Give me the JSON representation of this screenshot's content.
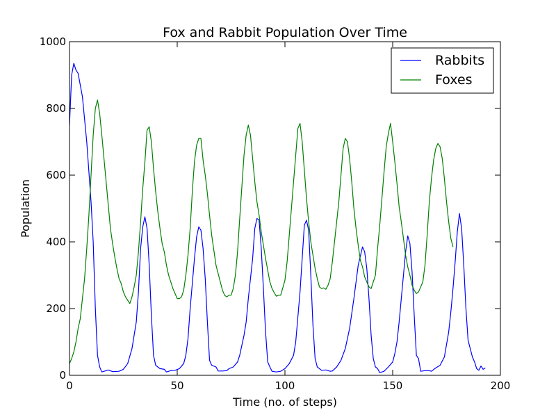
{
  "chart_data": {
    "type": "line",
    "title": "Fox and Rabbit Population Over Time",
    "xlabel": "Time (no. of steps)",
    "ylabel": "Population",
    "xlim": [
      0,
      200
    ],
    "ylim": [
      0,
      1000
    ],
    "xticks": [
      0,
      50,
      100,
      150,
      200
    ],
    "yticks": [
      0,
      200,
      400,
      600,
      800,
      1000
    ],
    "grid": false,
    "legend_position": "top-right",
    "series": [
      {
        "name": "Rabbits",
        "color": "#0000ff",
        "points": [
          [
            0,
            750
          ],
          [
            1,
            900
          ],
          [
            2,
            935
          ],
          [
            3,
            915
          ],
          [
            4,
            905
          ],
          [
            6,
            835
          ],
          [
            8,
            700
          ],
          [
            10,
            520
          ],
          [
            11,
            400
          ],
          [
            12,
            200
          ],
          [
            13,
            60
          ],
          [
            14,
            25
          ],
          [
            15,
            10
          ],
          [
            18,
            16
          ],
          [
            20,
            11
          ],
          [
            23,
            12
          ],
          [
            25,
            18
          ],
          [
            27,
            35
          ],
          [
            29,
            80
          ],
          [
            31,
            160
          ],
          [
            32,
            250
          ],
          [
            33,
            380
          ],
          [
            34,
            445
          ],
          [
            35,
            475
          ],
          [
            36,
            440
          ],
          [
            37,
            330
          ],
          [
            38,
            180
          ],
          [
            39,
            60
          ],
          [
            40,
            30
          ],
          [
            42,
            20
          ],
          [
            44,
            18
          ],
          [
            45,
            10
          ],
          [
            47,
            14
          ],
          [
            49,
            15
          ],
          [
            51,
            20
          ],
          [
            53,
            35
          ],
          [
            54,
            60
          ],
          [
            55,
            110
          ],
          [
            56,
            200
          ],
          [
            58,
            350
          ],
          [
            59,
            415
          ],
          [
            60,
            445
          ],
          [
            61,
            435
          ],
          [
            62,
            380
          ],
          [
            63,
            290
          ],
          [
            64,
            160
          ],
          [
            65,
            45
          ],
          [
            66,
            30
          ],
          [
            68,
            25
          ],
          [
            69,
            13
          ],
          [
            71,
            13
          ],
          [
            73,
            14
          ],
          [
            74,
            20
          ],
          [
            76,
            25
          ],
          [
            78,
            40
          ],
          [
            79,
            60
          ],
          [
            81,
            120
          ],
          [
            82,
            160
          ],
          [
            83,
            230
          ],
          [
            85,
            350
          ],
          [
            86,
            440
          ],
          [
            87,
            470
          ],
          [
            88,
            465
          ],
          [
            89,
            380
          ],
          [
            90,
            260
          ],
          [
            91,
            130
          ],
          [
            92,
            40
          ],
          [
            93,
            25
          ],
          [
            94,
            12
          ],
          [
            96,
            10
          ],
          [
            98,
            12
          ],
          [
            100,
            20
          ],
          [
            102,
            35
          ],
          [
            104,
            60
          ],
          [
            105,
            100
          ],
          [
            107,
            250
          ],
          [
            108,
            350
          ],
          [
            109,
            450
          ],
          [
            110,
            465
          ],
          [
            111,
            435
          ],
          [
            112,
            300
          ],
          [
            113,
            150
          ],
          [
            114,
            50
          ],
          [
            115,
            25
          ],
          [
            117,
            15
          ],
          [
            119,
            16
          ],
          [
            121,
            12
          ],
          [
            122,
            13
          ],
          [
            124,
            25
          ],
          [
            126,
            45
          ],
          [
            128,
            80
          ],
          [
            130,
            140
          ],
          [
            132,
            230
          ],
          [
            134,
            330
          ],
          [
            136,
            385
          ],
          [
            137,
            370
          ],
          [
            138,
            320
          ],
          [
            139,
            230
          ],
          [
            140,
            120
          ],
          [
            141,
            50
          ],
          [
            142,
            25
          ],
          [
            143,
            20
          ],
          [
            144,
            8
          ],
          [
            146,
            12
          ],
          [
            148,
            25
          ],
          [
            150,
            40
          ],
          [
            151,
            65
          ],
          [
            152,
            100
          ],
          [
            153,
            160
          ],
          [
            155,
            300
          ],
          [
            156,
            370
          ],
          [
            157,
            418
          ],
          [
            158,
            395
          ],
          [
            159,
            310
          ],
          [
            160,
            180
          ],
          [
            161,
            60
          ],
          [
            162,
            50
          ],
          [
            163,
            12
          ],
          [
            165,
            14
          ],
          [
            167,
            14
          ],
          [
            168,
            12
          ],
          [
            170,
            22
          ],
          [
            172,
            30
          ],
          [
            174,
            55
          ],
          [
            176,
            130
          ],
          [
            177,
            190
          ],
          [
            178,
            260
          ],
          [
            179,
            340
          ],
          [
            180,
            430
          ],
          [
            181,
            485
          ],
          [
            182,
            440
          ],
          [
            183,
            330
          ],
          [
            184,
            200
          ],
          [
            185,
            105
          ],
          [
            187,
            55
          ],
          [
            188,
            40
          ],
          [
            189,
            20
          ],
          [
            190,
            15
          ],
          [
            191,
            28
          ],
          [
            192,
            18
          ],
          [
            193,
            22
          ]
        ]
      },
      {
        "name": "Foxes",
        "color": "#008000",
        "points": [
          [
            0,
            35
          ],
          [
            1,
            50
          ],
          [
            2,
            70
          ],
          [
            3,
            100
          ],
          [
            4,
            140
          ],
          [
            5,
            170
          ],
          [
            6,
            230
          ],
          [
            7,
            290
          ],
          [
            8,
            380
          ],
          [
            9,
            480
          ],
          [
            10,
            600
          ],
          [
            11,
            720
          ],
          [
            12,
            800
          ],
          [
            13,
            825
          ],
          [
            14,
            785
          ],
          [
            15,
            720
          ],
          [
            16,
            650
          ],
          [
            17,
            580
          ],
          [
            18,
            510
          ],
          [
            19,
            440
          ],
          [
            20,
            395
          ],
          [
            21,
            355
          ],
          [
            22,
            320
          ],
          [
            23,
            290
          ],
          [
            24,
            275
          ],
          [
            25,
            250
          ],
          [
            26,
            235
          ],
          [
            27,
            225
          ],
          [
            28,
            215
          ],
          [
            29,
            235
          ],
          [
            30,
            265
          ],
          [
            31,
            300
          ],
          [
            32,
            370
          ],
          [
            33,
            460
          ],
          [
            34,
            560
          ],
          [
            35,
            640
          ],
          [
            36,
            735
          ],
          [
            37,
            745
          ],
          [
            38,
            700
          ],
          [
            39,
            620
          ],
          [
            40,
            550
          ],
          [
            41,
            490
          ],
          [
            42,
            440
          ],
          [
            43,
            395
          ],
          [
            44,
            370
          ],
          [
            45,
            330
          ],
          [
            46,
            300
          ],
          [
            47,
            280
          ],
          [
            48,
            260
          ],
          [
            49,
            245
          ],
          [
            50,
            230
          ],
          [
            51,
            230
          ],
          [
            52,
            235
          ],
          [
            53,
            255
          ],
          [
            54,
            300
          ],
          [
            55,
            360
          ],
          [
            56,
            440
          ],
          [
            57,
            550
          ],
          [
            58,
            640
          ],
          [
            59,
            690
          ],
          [
            60,
            710
          ],
          [
            61,
            710
          ],
          [
            62,
            645
          ],
          [
            63,
            600
          ],
          [
            64,
            545
          ],
          [
            65,
            480
          ],
          [
            66,
            420
          ],
          [
            67,
            375
          ],
          [
            68,
            330
          ],
          [
            69,
            305
          ],
          [
            70,
            280
          ],
          [
            71,
            255
          ],
          [
            72,
            240
          ],
          [
            73,
            235
          ],
          [
            74,
            240
          ],
          [
            75,
            240
          ],
          [
            76,
            260
          ],
          [
            77,
            300
          ],
          [
            78,
            370
          ],
          [
            79,
            470
          ],
          [
            80,
            565
          ],
          [
            81,
            660
          ],
          [
            82,
            720
          ],
          [
            83,
            750
          ],
          [
            84,
            720
          ],
          [
            85,
            650
          ],
          [
            86,
            580
          ],
          [
            87,
            520
          ],
          [
            88,
            480
          ],
          [
            89,
            430
          ],
          [
            90,
            390
          ],
          [
            91,
            350
          ],
          [
            92,
            315
          ],
          [
            93,
            280
          ],
          [
            94,
            260
          ],
          [
            95,
            248
          ],
          [
            96,
            237
          ],
          [
            97,
            240
          ],
          [
            98,
            240
          ],
          [
            99,
            262
          ],
          [
            100,
            285
          ],
          [
            101,
            340
          ],
          [
            102,
            420
          ],
          [
            103,
            500
          ],
          [
            104,
            580
          ],
          [
            105,
            660
          ],
          [
            106,
            740
          ],
          [
            107,
            755
          ],
          [
            108,
            700
          ],
          [
            109,
            615
          ],
          [
            110,
            530
          ],
          [
            111,
            460
          ],
          [
            112,
            400
          ],
          [
            113,
            360
          ],
          [
            114,
            320
          ],
          [
            115,
            290
          ],
          [
            116,
            265
          ],
          [
            117,
            260
          ],
          [
            118,
            262
          ],
          [
            119,
            258
          ],
          [
            120,
            270
          ],
          [
            121,
            290
          ],
          [
            122,
            340
          ],
          [
            123,
            400
          ],
          [
            124,
            460
          ],
          [
            125,
            520
          ],
          [
            126,
            600
          ],
          [
            127,
            680
          ],
          [
            128,
            710
          ],
          [
            129,
            700
          ],
          [
            130,
            650
          ],
          [
            131,
            580
          ],
          [
            132,
            500
          ],
          [
            133,
            440
          ],
          [
            134,
            390
          ],
          [
            135,
            345
          ],
          [
            136,
            325
          ],
          [
            137,
            295
          ],
          [
            138,
            280
          ],
          [
            139,
            265
          ],
          [
            140,
            260
          ],
          [
            141,
            280
          ],
          [
            142,
            300
          ],
          [
            143,
            380
          ],
          [
            144,
            450
          ],
          [
            145,
            530
          ],
          [
            146,
            610
          ],
          [
            147,
            685
          ],
          [
            148,
            725
          ],
          [
            149,
            755
          ],
          [
            150,
            700
          ],
          [
            151,
            640
          ],
          [
            152,
            575
          ],
          [
            153,
            505
          ],
          [
            154,
            460
          ],
          [
            155,
            410
          ],
          [
            156,
            360
          ],
          [
            157,
            325
          ],
          [
            158,
            300
          ],
          [
            159,
            270
          ],
          [
            160,
            255
          ],
          [
            161,
            245
          ],
          [
            162,
            250
          ],
          [
            163,
            265
          ],
          [
            164,
            280
          ],
          [
            165,
            330
          ],
          [
            166,
            420
          ],
          [
            167,
            520
          ],
          [
            168,
            590
          ],
          [
            169,
            645
          ],
          [
            170,
            680
          ],
          [
            171,
            695
          ],
          [
            172,
            685
          ],
          [
            173,
            650
          ],
          [
            174,
            590
          ],
          [
            175,
            520
          ],
          [
            176,
            460
          ],
          [
            177,
            410
          ],
          [
            178,
            385
          ]
        ]
      }
    ]
  }
}
